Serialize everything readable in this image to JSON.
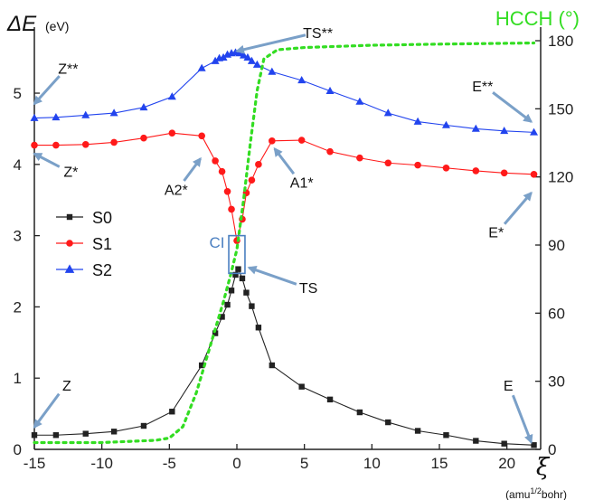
{
  "chart_data": {
    "type": "line",
    "ylabel_main": "ΔE",
    "ylabel_unit": "(eV)",
    "y2label": "HCCH (°)",
    "xlabel": "ξ",
    "xlabel_unit_parts": [
      "(amu",
      "1/2",
      "bohr)"
    ],
    "xlim": [
      -15,
      22.5
    ],
    "ylim": [
      0,
      5.8
    ],
    "y2lim": [
      0,
      182
    ],
    "xticks": [
      -15,
      -10,
      -5,
      0,
      5,
      10,
      15,
      20
    ],
    "yticks": [
      0,
      1,
      2,
      3,
      4,
      5
    ],
    "y2ticks": [
      0,
      30,
      60,
      90,
      120,
      150,
      180
    ],
    "grid": false,
    "legend_position": "middle-left",
    "series": [
      {
        "name": "S0",
        "color": "#222222",
        "marker": "square",
        "x": [
          -15,
          -13.4,
          -11.2,
          -9.1,
          -6.9,
          -4.8,
          -2.6,
          -1.6,
          -1.1,
          -0.7,
          -0.4,
          -0.1,
          0.1,
          0.4,
          0.7,
          1.1,
          1.6,
          2.6,
          4.8,
          6.9,
          9.1,
          11.2,
          13.4,
          15.5,
          17.7,
          19.8,
          22
        ],
        "y": [
          0.2,
          0.2,
          0.22,
          0.25,
          0.33,
          0.53,
          1.18,
          1.63,
          1.86,
          2.03,
          2.23,
          2.45,
          2.53,
          2.4,
          2.2,
          2.01,
          1.71,
          1.18,
          0.88,
          0.7,
          0.52,
          0.38,
          0.26,
          0.2,
          0.12,
          0.08,
          0.06
        ]
      },
      {
        "name": "S1",
        "color": "#ff1a1a",
        "marker": "circle",
        "x": [
          -15,
          -13.4,
          -11.2,
          -9.1,
          -6.9,
          -4.8,
          -2.6,
          -1.6,
          -1.1,
          -0.7,
          -0.4,
          0,
          0.4,
          0.7,
          1.1,
          1.6,
          2.6,
          4.8,
          6.9,
          9.1,
          11.2,
          13.4,
          15.5,
          17.7,
          19.8,
          22
        ],
        "y": [
          4.27,
          4.27,
          4.28,
          4.31,
          4.37,
          4.44,
          4.4,
          4.05,
          3.9,
          3.62,
          3.37,
          2.93,
          3.23,
          3.6,
          3.78,
          4.0,
          4.33,
          4.34,
          4.18,
          4.09,
          4.02,
          3.99,
          3.95,
          3.91,
          3.88,
          3.86
        ]
      },
      {
        "name": "S2",
        "color": "#2244ee",
        "marker": "triangle",
        "x": [
          -15,
          -13.4,
          -11.2,
          -9.1,
          -6.9,
          -4.8,
          -2.6,
          -1.6,
          -1.3,
          -1.0,
          -0.7,
          -0.4,
          -0.1,
          0.2,
          0.5,
          0.8,
          1.1,
          1.5,
          2.6,
          4.8,
          6.9,
          9.1,
          11.2,
          13.4,
          15.5,
          17.7,
          19.8,
          22
        ],
        "y": [
          4.65,
          4.66,
          4.69,
          4.72,
          4.8,
          4.95,
          5.35,
          5.45,
          5.49,
          5.5,
          5.54,
          5.56,
          5.57,
          5.56,
          5.53,
          5.5,
          5.45,
          5.4,
          5.3,
          5.18,
          5.03,
          4.88,
          4.72,
          4.6,
          4.55,
          4.5,
          4.47,
          4.45
        ]
      },
      {
        "name": "HCCH (°)",
        "color": "#33dd22",
        "axis": "right",
        "style": "dotted",
        "x": [
          -15,
          -10,
          -6,
          -5,
          -4,
          -3,
          -2,
          -1.5,
          -1,
          -0.5,
          0,
          0.5,
          1,
          1.5,
          2,
          3,
          5,
          10,
          15,
          22
        ],
        "y": [
          3,
          3,
          4,
          5,
          10,
          25,
          45,
          55,
          65,
          76,
          88,
          110,
          135,
          158,
          172,
          176,
          177,
          178,
          178.5,
          179
        ]
      }
    ],
    "annotations": [
      {
        "text": "TS**",
        "x": 6.0,
        "y": 5.85,
        "tip_x": 0.0,
        "tip_y": 5.59
      },
      {
        "text": "Z**",
        "x": -12.5,
        "y": 5.35,
        "tip_x": -15.0,
        "tip_y": 4.85
      },
      {
        "text": "E**",
        "x": 18.2,
        "y": 5.1,
        "tip_x": 21.8,
        "tip_y": 4.6
      },
      {
        "text": "Z*",
        "x": -12.3,
        "y": 3.9,
        "tip_x": -15.0,
        "tip_y": 4.15
      },
      {
        "text": "A2*",
        "x": -4.5,
        "y": 3.65,
        "tip_x": -2.7,
        "tip_y": 4.08
      },
      {
        "text": "A1*",
        "x": 4.8,
        "y": 3.75,
        "tip_x": 2.8,
        "tip_y": 4.22
      },
      {
        "text": "E*",
        "x": 19.2,
        "y": 3.05,
        "tip_x": 21.8,
        "tip_y": 3.6
      },
      {
        "text": "TS",
        "x": 5.3,
        "y": 2.27,
        "tip_x": 0.9,
        "tip_y": 2.55
      },
      {
        "text": "Z",
        "x": -12.6,
        "y": 0.9,
        "tip_x": -15.0,
        "tip_y": 0.31
      },
      {
        "text": "E",
        "x": 20.1,
        "y": 0.9,
        "tip_x": 21.8,
        "tip_y": 0.1
      }
    ],
    "ci_label": "CI",
    "ci_box": {
      "x0": -0.6,
      "x1": 0.6,
      "y0": 2.47,
      "y1": 3.0
    }
  }
}
